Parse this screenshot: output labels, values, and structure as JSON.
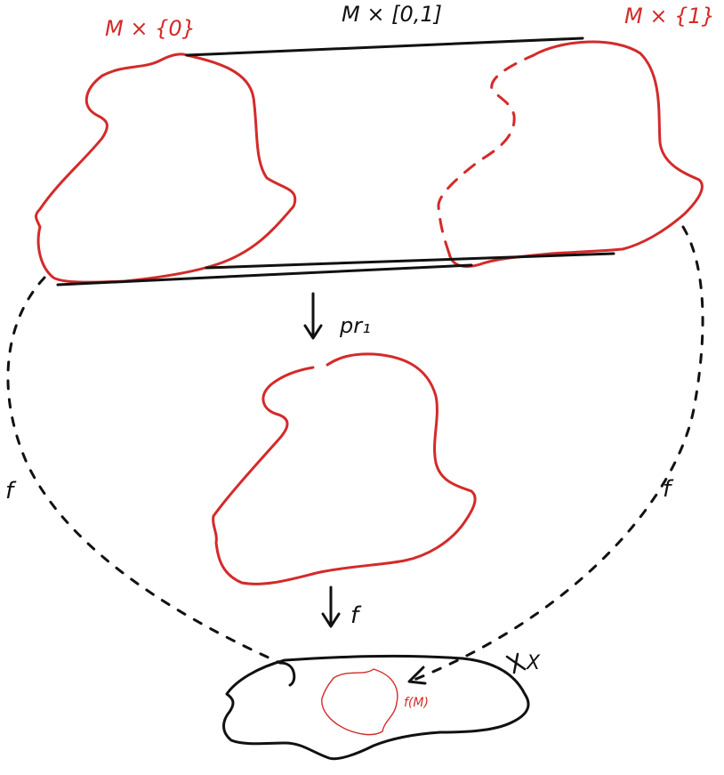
{
  "diagram": {
    "labels": {
      "m_times_0": "M × {0}",
      "m_times_interval": "M × [0,1]",
      "m_times_1": "M × {1}",
      "pr1": "pr₁",
      "f_down": "f",
      "f_left": "f",
      "f_right": "f",
      "x_space": "X",
      "f_of_m": "f(M)"
    },
    "colors": {
      "manifold": "#d42a2a",
      "maps": "#111111",
      "background": "#ffffff"
    }
  }
}
